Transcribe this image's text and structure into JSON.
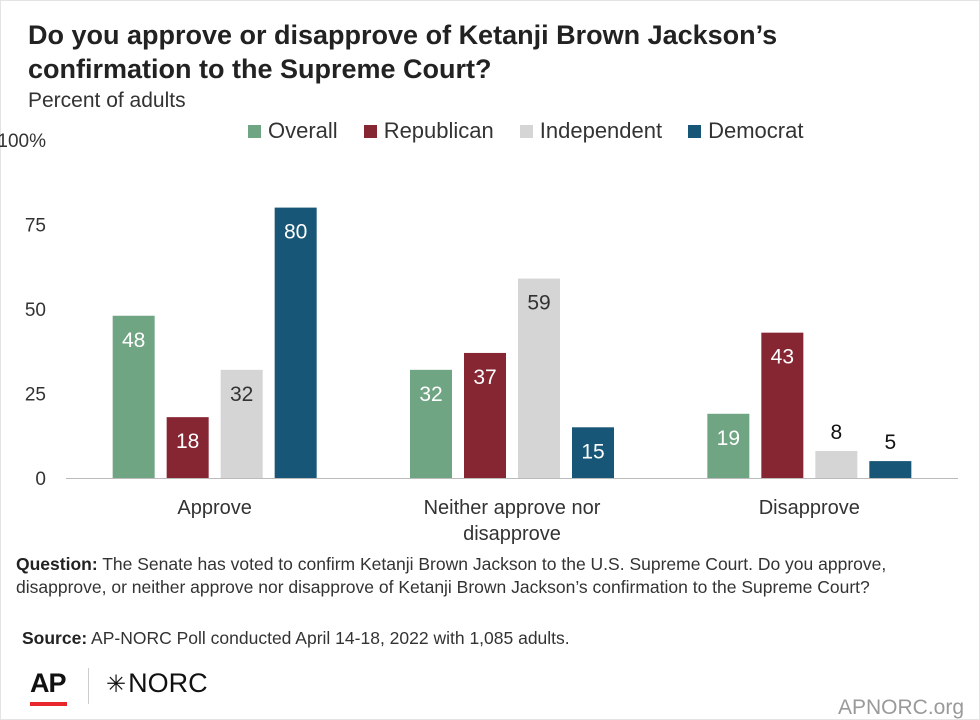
{
  "header": {
    "title": "Do you approve or disapprove of Ketanji Brown Jackson’s confirmation to the Supreme Court?",
    "subtitle": "Percent of adults"
  },
  "chart_data": {
    "type": "bar",
    "categories": [
      "Approve",
      "Neither approve nor disapprove",
      "Disapprove"
    ],
    "category_lines": [
      [
        "Approve"
      ],
      [
        "Neither approve nor",
        "disapprove"
      ],
      [
        "Disapprove"
      ]
    ],
    "series": [
      {
        "name": "Overall",
        "color": "#70a583",
        "values": [
          48,
          32,
          19
        ]
      },
      {
        "name": "Republican",
        "color": "#862633",
        "values": [
          18,
          37,
          43
        ]
      },
      {
        "name": "Independent",
        "color": "#d5d5d5",
        "values": [
          32,
          59,
          8
        ]
      },
      {
        "name": "Democrat",
        "color": "#175676",
        "values": [
          80,
          15,
          5
        ]
      }
    ],
    "ylim": [
      0,
      100
    ],
    "yticks": [
      0,
      25,
      50,
      75,
      100
    ],
    "ytick_labels": [
      "0",
      "25",
      "50",
      "75",
      "100%"
    ],
    "legend_position": "top",
    "grid": false
  },
  "notes": {
    "question_label": "Question:",
    "question_text": "  The Senate has voted to confirm Ketanji Brown Jackson to the U.S. Supreme Court. Do you approve, disapprove, or neither approve nor disapprove of Ketanji Brown Jackson’s confirmation to the Supreme Court?",
    "source_label": "Source:",
    "source_text": " AP-NORC Poll conducted April 14-18, 2022 with 1,085 adults."
  },
  "footer": {
    "logo_ap": "AP",
    "logo_norc": "NORC",
    "site": "APNORC.org"
  }
}
